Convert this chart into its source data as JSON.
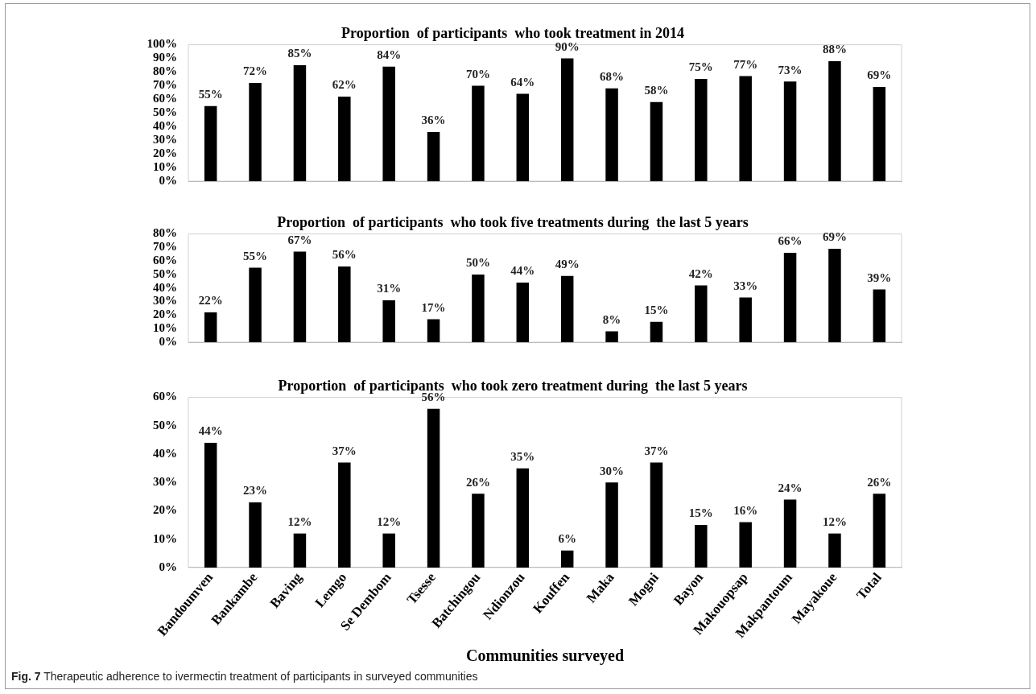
{
  "chart_data": [
    {
      "type": "bar",
      "title": "Proportion  of participants  who took treatment in 2014",
      "categories": [
        null,
        null,
        null,
        null,
        null,
        null,
        null,
        null,
        null,
        null,
        null,
        null,
        null,
        null,
        null,
        null
      ],
      "color": "#000000",
      "values": [
        55,
        72,
        85,
        62,
        84,
        36,
        70,
        64,
        90,
        68,
        58,
        75,
        77,
        73,
        88,
        69
      ],
      "value_labels": [
        "55%",
        "72%",
        "85%",
        "62%",
        "84%",
        "36%",
        "70%",
        "64%",
        "90%",
        "68%",
        "58%",
        "75%",
        "77%",
        "73%",
        "88%",
        "69%"
      ],
      "ylim": [
        0,
        100
      ],
      "yticks": [
        {
          "value": 0,
          "label": "0%"
        },
        {
          "value": 10,
          "label": "10%"
        },
        {
          "value": 20,
          "label": "20%"
        },
        {
          "value": 30,
          "label": "30%"
        },
        {
          "value": 40,
          "label": "40%"
        },
        {
          "value": 50,
          "label": "50%"
        },
        {
          "value": 60,
          "label": "60%"
        },
        {
          "value": 70,
          "label": "70%"
        },
        {
          "value": 80,
          "label": "80%"
        },
        {
          "value": 90,
          "label": "90%"
        },
        {
          "value": 100,
          "label": "100%"
        }
      ],
      "tick_labels": "y"
    },
    {
      "type": "bar",
      "title": "Proportion  of participants  who took five treatments during  the last 5 years",
      "categories": [
        null,
        null,
        null,
        null,
        null,
        null,
        null,
        null,
        null,
        null,
        null,
        null,
        null,
        null,
        null,
        null
      ],
      "color": "#000000",
      "values": [
        22,
        55,
        67,
        56,
        31,
        17,
        50,
        44,
        49,
        8,
        15,
        42,
        33,
        66,
        69,
        39
      ],
      "value_labels": [
        "22%",
        "55%",
        "67%",
        "56%",
        "31%",
        "17%",
        "50%",
        "44%",
        "49%",
        "8%",
        "15%",
        "42%",
        "33%",
        "66%",
        "69%",
        "39%"
      ],
      "ylim": [
        0,
        80
      ],
      "yticks": [
        {
          "value": 0,
          "label": "0%"
        },
        {
          "value": 10,
          "label": "10%"
        },
        {
          "value": 20,
          "label": "20%"
        },
        {
          "value": 30,
          "label": "30%"
        },
        {
          "value": 40,
          "label": "40%"
        },
        {
          "value": 50,
          "label": "50%"
        },
        {
          "value": 60,
          "label": "60%"
        },
        {
          "value": 70,
          "label": "70%"
        },
        {
          "value": 80,
          "label": "80%"
        }
      ],
      "tick_labels": "y"
    },
    {
      "type": "bar",
      "title": "Proportion  of participants  who took zero treatment during  the last 5 years",
      "xlabel": "Communities surveyed",
      "categories": [
        "Bandoumven",
        "Bankambe",
        "Baving",
        "Lemgo",
        "Se Dembom",
        "Tsesse",
        "Batchingou",
        "Ndionzou",
        "Kouffen",
        "Maka",
        "Mogni",
        "Bayon",
        "Makouopsap",
        "Makpantoum",
        "Mayakoue",
        "Total"
      ],
      "color": "#000000",
      "values": [
        44,
        23,
        12,
        37,
        12,
        56,
        26,
        35,
        6,
        30,
        37,
        15,
        16,
        24,
        12,
        26
      ],
      "value_labels": [
        "44%",
        "23%",
        "12%",
        "37%",
        "12%",
        "56%",
        "26%",
        "35%",
        "6%",
        "30%",
        "37%",
        "15%",
        "16%",
        "24%",
        "12%",
        "26%"
      ],
      "ylim": [
        0,
        60
      ],
      "yticks": [
        {
          "value": 0,
          "label": "0%"
        },
        {
          "value": 10,
          "label": "10%"
        },
        {
          "value": 20,
          "label": "20%"
        },
        {
          "value": 30,
          "label": "30%"
        },
        {
          "value": 40,
          "label": "40%"
        },
        {
          "value": 50,
          "label": "50%"
        },
        {
          "value": 60,
          "label": "60%"
        }
      ],
      "annotations": [
        "Fig. 7 Therapeutic adherence to ivermectin treatment of participants in surveyed communities"
      ]
    }
  ]
}
